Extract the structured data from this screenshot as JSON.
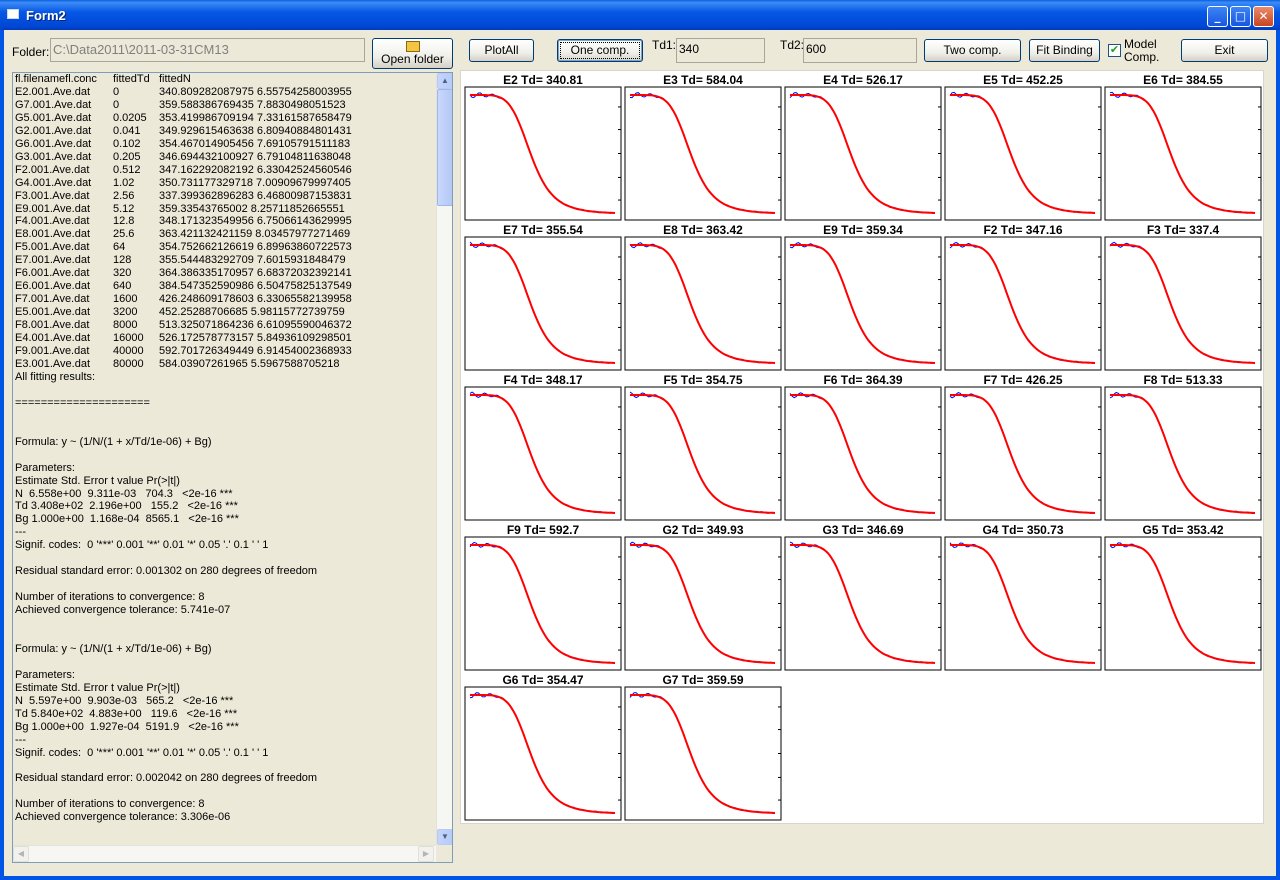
{
  "window": {
    "title": "Form2"
  },
  "folder": {
    "label": "Folder:",
    "value": "C:\\Data2011\\2011-03-31CM13",
    "open_label": "Open folder"
  },
  "toolbar": {
    "plot_all": "PlotAll",
    "one_comp": "One comp.",
    "td1_label": "Td1:",
    "td1_value": "340",
    "td2_label": "Td2:",
    "td2_value": "600",
    "two_comp": "Two comp.",
    "fit_binding": "Fit Binding",
    "model_comp_line1": "Model",
    "model_comp_line2": "Comp.",
    "model_comp_checked": true,
    "exit": "Exit"
  },
  "results": {
    "header": [
      "fl.filename",
      "fl.conc",
      "fittedTd",
      "fittedN"
    ],
    "rows": [
      [
        "E2.001.Ave.dat",
        "0",
        "340.809282087975",
        "6.55754258003955"
      ],
      [
        "G7.001.Ave.dat",
        "0",
        "359.588386769435",
        "7.8830498051523"
      ],
      [
        "G5.001.Ave.dat",
        "0.0205",
        "353.419986709194",
        "7.33161587658479"
      ],
      [
        "G2.001.Ave.dat",
        "0.041",
        "349.929615463638",
        "6.80940884801431"
      ],
      [
        "G6.001.Ave.dat",
        "0.102",
        "354.467014905456",
        "7.69105791511183"
      ],
      [
        "G3.001.Ave.dat",
        "0.205",
        "346.694432100927",
        "6.79104811638048"
      ],
      [
        "F2.001.Ave.dat",
        "0.512",
        "347.162292082192",
        "6.33042524560546"
      ],
      [
        "G4.001.Ave.dat",
        "1.02",
        "350.731177329718",
        "7.00909679997405"
      ],
      [
        "F3.001.Ave.dat",
        "2.56",
        "337.399362896283",
        "6.46800987153831"
      ],
      [
        "E9.001.Ave.dat",
        "5.12",
        "359.33543765002",
        "8.25711852665551"
      ],
      [
        "F4.001.Ave.dat",
        "12.8",
        "348.171323549956",
        "6.75066143629995"
      ],
      [
        "E8.001.Ave.dat",
        "25.6",
        "363.421132421159",
        "8.03457977271469"
      ],
      [
        "F5.001.Ave.dat",
        "64",
        "354.752662126619",
        "6.89963860722573"
      ],
      [
        "E7.001.Ave.dat",
        "128",
        "355.544483292709",
        "7.6015931848479"
      ],
      [
        "F6.001.Ave.dat",
        "320",
        "364.386335170957",
        "6.68372032392141"
      ],
      [
        "E6.001.Ave.dat",
        "640",
        "384.547352590986",
        "6.50475825137549"
      ],
      [
        "F7.001.Ave.dat",
        "1600",
        "426.248609178603",
        "6.33065582139958"
      ],
      [
        "E5.001.Ave.dat",
        "3200",
        "452.25288706685",
        "5.98115772739759"
      ],
      [
        "F8.001.Ave.dat",
        "8000",
        "513.325071864236",
        "6.61095590046372"
      ],
      [
        "E4.001.Ave.dat",
        "16000",
        "526.172578773157",
        "5.84936109298501"
      ],
      [
        "F9.001.Ave.dat",
        "40000",
        "592.701726349449",
        "6.91454002368933"
      ],
      [
        "E3.001.Ave.dat",
        "80000",
        "584.03907261965",
        "5.5967588705218"
      ]
    ],
    "log_lines": [
      "All fitting results:",
      "",
      "=====================",
      "",
      "",
      "Formula: y ~ (1/N/(1 + x/Td/1e-06) + Bg)",
      "",
      "Parameters:",
      "Estimate Std. Error t value Pr(>|t|)",
      "N  6.558e+00  9.311e-03   704.3   <2e-16 ***",
      "Td 3.408e+02  2.196e+00   155.2   <2e-16 ***",
      "Bg 1.000e+00  1.168e-04  8565.1   <2e-16 ***",
      "---",
      "Signif. codes:  0 '***' 0.001 '**' 0.01 '*' 0.05 '.' 0.1 ' ' 1",
      "",
      "Residual standard error: 0.001302 on 280 degrees of freedom",
      "",
      "Number of iterations to convergence: 8",
      "Achieved convergence tolerance: 5.741e-07",
      "",
      "",
      "Formula: y ~ (1/N/(1 + x/Td/1e-06) + Bg)",
      "",
      "Parameters:",
      "Estimate Std. Error t value Pr(>|t|)",
      "N  5.597e+00  9.903e-03   565.2   <2e-16 ***",
      "Td 5.840e+02  4.883e+00   119.6   <2e-16 ***",
      "Bg 1.000e+00  1.927e-04  5191.9   <2e-16 ***",
      "---",
      "Signif. codes:  0 '***' 0.001 '**' 0.01 '*' 0.05 '.' 0.1 ' ' 1",
      "",
      "Residual standard error: 0.002042 on 280 degrees of freedom",
      "",
      "Number of iterations to convergence: 8",
      "Achieved convergence tolerance: 3.306e-06"
    ]
  },
  "chart_data": {
    "type": "line",
    "colors": {
      "data": "#0000ff",
      "fit": "#ff0000"
    },
    "panels": [
      {
        "title": "E2 Td= 340.81"
      },
      {
        "title": "E3 Td= 584.04"
      },
      {
        "title": "E4 Td= 526.17"
      },
      {
        "title": "E5 Td= 452.25"
      },
      {
        "title": "E6 Td= 384.55"
      },
      {
        "title": "E7 Td= 355.54"
      },
      {
        "title": "E8 Td= 363.42"
      },
      {
        "title": "E9 Td= 359.34"
      },
      {
        "title": "F2 Td= 347.16"
      },
      {
        "title": "F3 Td= 337.4"
      },
      {
        "title": "F4 Td= 348.17"
      },
      {
        "title": "F5 Td= 354.75"
      },
      {
        "title": "F6 Td= 364.39"
      },
      {
        "title": "F7 Td= 426.25"
      },
      {
        "title": "F8 Td= 513.33"
      },
      {
        "title": "F9 Td= 592.7"
      },
      {
        "title": "G2 Td= 349.93"
      },
      {
        "title": "G3 Td= 346.69"
      },
      {
        "title": "G4 Td= 350.73"
      },
      {
        "title": "G5 Td= 353.42"
      },
      {
        "title": "G6 Td= 354.47"
      },
      {
        "title": "G7 Td= 359.59"
      }
    ]
  }
}
